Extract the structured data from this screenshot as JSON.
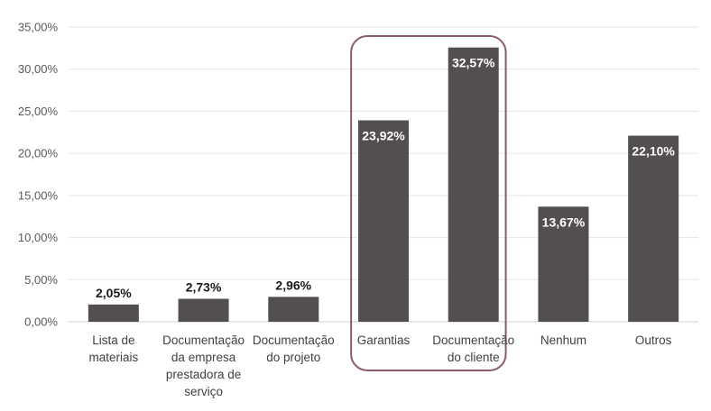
{
  "chart_data": {
    "type": "bar",
    "categories": [
      "Lista de materiais",
      "Documentação da empresa prestadora de serviço",
      "Documentação do projeto",
      "Garantias",
      "Documentação do cliente",
      "Nenhum",
      "Outros"
    ],
    "values": [
      2.05,
      2.73,
      2.96,
      23.92,
      32.57,
      13.67,
      22.1
    ],
    "data_labels": [
      "2,05%",
      "2,73%",
      "2,96%",
      "23,92%",
      "32,57%",
      "13,67%",
      "22,10%"
    ],
    "y_ticks": [
      "0,00%",
      "5,00%",
      "10,00%",
      "15,00%",
      "20,00%",
      "25,00%",
      "30,00%",
      "35,00%"
    ],
    "ylim": [
      0,
      35
    ],
    "grid": true,
    "legend": "none",
    "highlight_categories": [
      "Garantias",
      "Documentação do cliente"
    ],
    "colors": {
      "bar": "#534e52",
      "highlight_border": "#8a5a70",
      "label_inside": "#ffffff",
      "label_outside": "#1a1a1a"
    }
  }
}
